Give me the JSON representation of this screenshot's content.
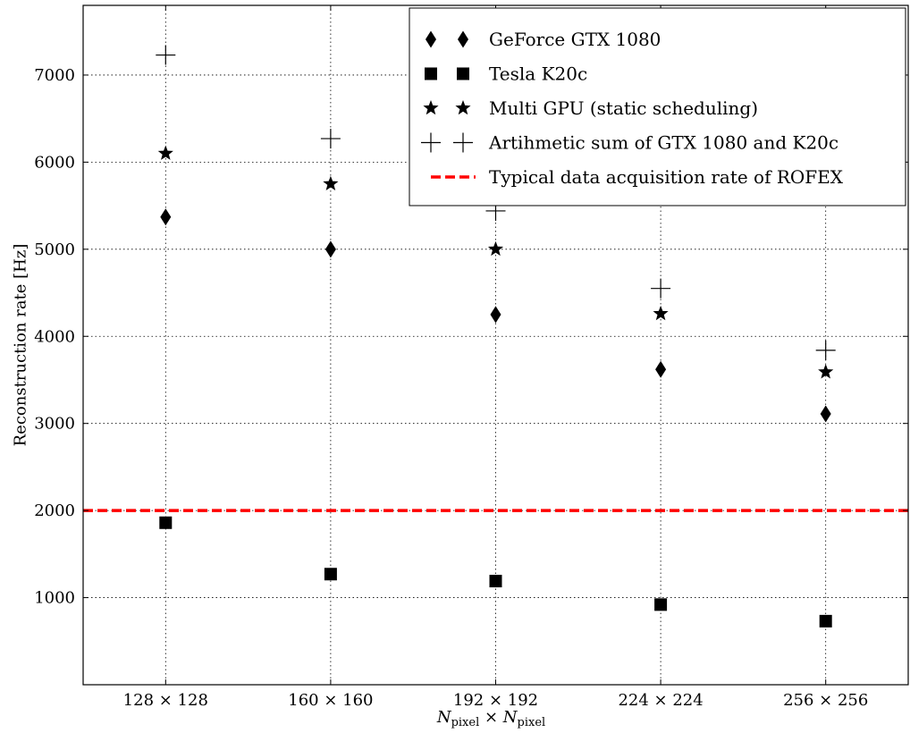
{
  "chart_data": {
    "type": "scatter",
    "categories": [
      "128 × 128",
      "160 × 160",
      "192 × 192",
      "224 × 224",
      "256 × 256"
    ],
    "xlabel": {
      "main_a": "N",
      "sub_a": "pixel",
      "times": " × ",
      "main_b": "N",
      "sub_b": "pixel"
    },
    "ylabel": "Reconstruction rate [Hz]",
    "ylim": [
      0,
      7800
    ],
    "yticks": [
      1000,
      2000,
      3000,
      4000,
      5000,
      6000,
      7000
    ],
    "grid": true,
    "legend_position": "top-right",
    "series": [
      {
        "name": "GeForce GTX 1080",
        "marker": "diamond",
        "color": "#000000",
        "values": [
          5370,
          5000,
          4250,
          3620,
          3110
        ]
      },
      {
        "name": "Tesla K20c",
        "marker": "square",
        "color": "#000000",
        "values": [
          1860,
          1270,
          1190,
          920,
          730
        ]
      },
      {
        "name": "Multi GPU (static scheduling)",
        "marker": "star",
        "color": "#000000",
        "values": [
          6100,
          5750,
          5000,
          4260,
          3590
        ]
      },
      {
        "name": "Artihmetic sum of GTX 1080 and K20c",
        "marker": "plus",
        "color": "#000000",
        "values": [
          7230,
          6270,
          5440,
          4550,
          3840
        ]
      }
    ],
    "reference_line": {
      "name": "Typical data acquisition rate of ROFEX",
      "value": 2000,
      "color": "#ff0000",
      "style": "dashed"
    }
  }
}
